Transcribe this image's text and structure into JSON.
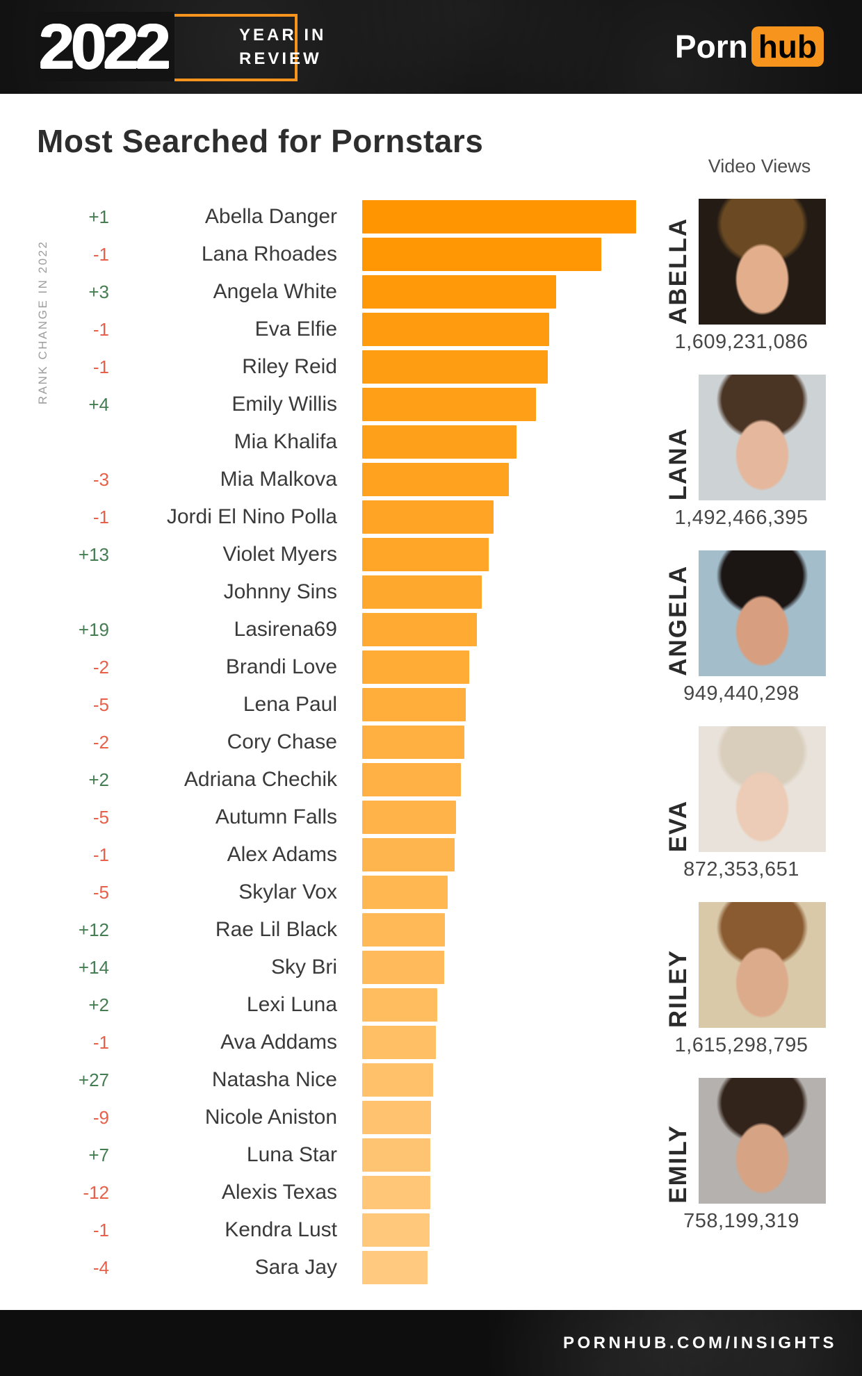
{
  "header": {
    "year": "2022",
    "tagline_line1": "YEAR IN",
    "tagline_line2": "REVIEW",
    "brand_porn": "Porn",
    "brand_hub": "hub"
  },
  "title": "Most Searched for Pornstars",
  "views_header": "Video Views",
  "axis_label": "RANK CHANGE IN 2022",
  "footer": "PORNHUB.COM/INSIGHTS",
  "colors": {
    "accent_orange": "#f7941d",
    "bar_gradient_top": "#ff9500",
    "bar_gradient_bottom": "#ffca80",
    "rank_positive": "#457d52",
    "rank_negative": "#e6604a",
    "header_bg": "#121212",
    "title_text": "#2d2d2d",
    "name_text": "#3a3a3a"
  },
  "chart_data": {
    "type": "bar",
    "orientation": "horizontal",
    "title": "Most Searched for Pornstars",
    "xlabel": "",
    "ylabel": "RANK CHANGE IN 2022",
    "axis_ticks_shown": false,
    "legend": "none",
    "value_unit": "relative bar length in px (no numeric axis shown in source)",
    "max_value": 394,
    "rows": [
      {
        "rank_change": "+1",
        "name": "Abella Danger",
        "value": 394
      },
      {
        "rank_change": "-1",
        "name": "Lana Rhoades",
        "value": 344
      },
      {
        "rank_change": "+3",
        "name": "Angela White",
        "value": 279
      },
      {
        "rank_change": "-1",
        "name": "Eva Elfie",
        "value": 269
      },
      {
        "rank_change": "-1",
        "name": "Riley Reid",
        "value": 267
      },
      {
        "rank_change": "+4",
        "name": "Emily Willis",
        "value": 250
      },
      {
        "rank_change": "",
        "name": "Mia Khalifa",
        "value": 222
      },
      {
        "rank_change": "-3",
        "name": "Mia Malkova",
        "value": 211
      },
      {
        "rank_change": "-1",
        "name": "Jordi El Nino Polla",
        "value": 189
      },
      {
        "rank_change": "+13",
        "name": "Violet Myers",
        "value": 182
      },
      {
        "rank_change": "",
        "name": "Johnny Sins",
        "value": 172
      },
      {
        "rank_change": "+19",
        "name": "Lasirena69",
        "value": 165
      },
      {
        "rank_change": "-2",
        "name": "Brandi Love",
        "value": 154
      },
      {
        "rank_change": "-5",
        "name": "Lena Paul",
        "value": 149
      },
      {
        "rank_change": "-2",
        "name": "Cory Chase",
        "value": 147
      },
      {
        "rank_change": "+2",
        "name": "Adriana Chechik",
        "value": 142
      },
      {
        "rank_change": "-5",
        "name": "Autumn Falls",
        "value": 135
      },
      {
        "rank_change": "-1",
        "name": "Alex Adams",
        "value": 133
      },
      {
        "rank_change": "-5",
        "name": "Skylar Vox",
        "value": 123
      },
      {
        "rank_change": "+12",
        "name": "Rae Lil Black",
        "value": 119
      },
      {
        "rank_change": "+14",
        "name": "Sky Bri",
        "value": 118
      },
      {
        "rank_change": "+2",
        "name": "Lexi Luna",
        "value": 108
      },
      {
        "rank_change": "-1",
        "name": "Ava Addams",
        "value": 106
      },
      {
        "rank_change": "+27",
        "name": "Natasha Nice",
        "value": 102
      },
      {
        "rank_change": "-9",
        "name": "Nicole Aniston",
        "value": 99
      },
      {
        "rank_change": "+7",
        "name": "Luna Star",
        "value": 98
      },
      {
        "rank_change": "-12",
        "name": "Alexis Texas",
        "value": 98
      },
      {
        "rank_change": "-1",
        "name": "Kendra Lust",
        "value": 97
      },
      {
        "rank_change": "-4",
        "name": "Sara Jay",
        "value": 94
      }
    ]
  },
  "video_views": [
    {
      "label": "ABELLA",
      "views": "1,609,231,086",
      "photo_colors": {
        "bg": "#241c14",
        "hair": "#6b4a23",
        "skin": "#e2ae8c"
      }
    },
    {
      "label": "LANA",
      "views": "1,492,466,395",
      "photo_colors": {
        "bg": "#cdd2d4",
        "hair": "#4a3424",
        "skin": "#e5b79c"
      }
    },
    {
      "label": "ANGELA",
      "views": "949,440,298",
      "photo_colors": {
        "bg": "#a3bdcb",
        "hair": "#1b1513",
        "skin": "#d79f80"
      }
    },
    {
      "label": "EVA",
      "views": "872,353,651",
      "photo_colors": {
        "bg": "#e8e2da",
        "hair": "#d9cdbb",
        "skin": "#ecccb6"
      }
    },
    {
      "label": "RILEY",
      "views": "1,615,298,795",
      "photo_colors": {
        "bg": "#d9c9a9",
        "hair": "#8a5a30",
        "skin": "#dcab8b"
      }
    },
    {
      "label": "EMILY",
      "views": "758,199,319",
      "photo_colors": {
        "bg": "#b5b1ae",
        "hair": "#33241b",
        "skin": "#d6a384"
      }
    }
  ]
}
